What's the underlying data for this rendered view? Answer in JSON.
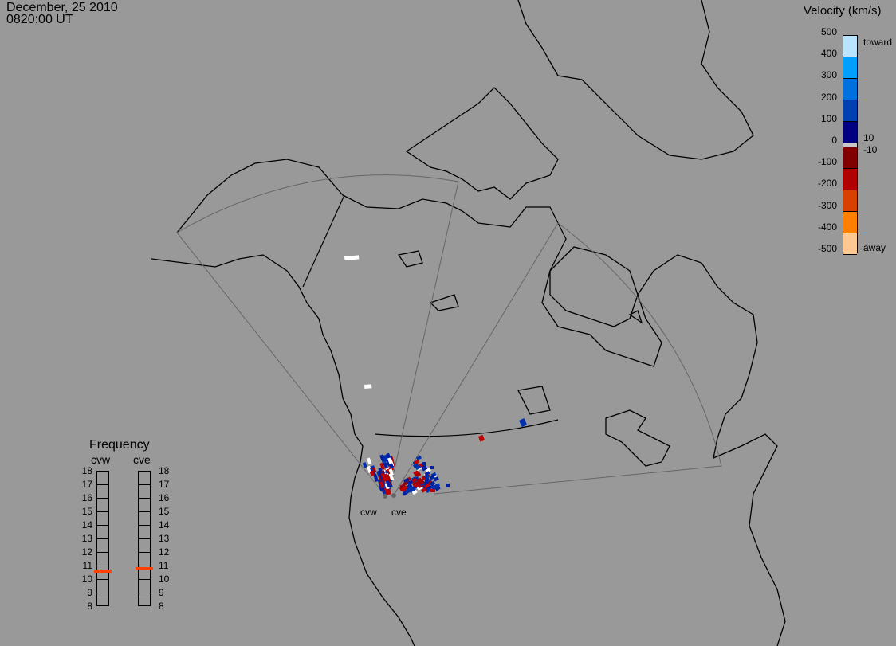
{
  "header": {
    "date": "December, 25 2010",
    "time": "0820:00 UT"
  },
  "colorbar": {
    "title": "Velocity (km/s)",
    "ticks": [
      "500",
      "400",
      "300",
      "200",
      "100",
      "0",
      "-100",
      "-200",
      "-300",
      "-400",
      "-500"
    ],
    "toward_label": "toward",
    "away_label": "away",
    "plus_label": "10",
    "minus_label": "-10",
    "colors": [
      "#b8e4ff",
      "#00a0ff",
      "#0070dd",
      "#0040b0",
      "#000080",
      "#800000",
      "#b00000",
      "#d84000",
      "#ff8000",
      "#ffc890"
    ],
    "ground_scatter_color": "#c8c8c8"
  },
  "frequency": {
    "title": "Frequency",
    "radars": [
      {
        "name": "cvw",
        "freq_mhz": 10.6
      },
      {
        "name": "cve",
        "freq_mhz": 10.8
      }
    ],
    "ticks": [
      "18",
      "17",
      "16",
      "15",
      "14",
      "13",
      "12",
      "11",
      "10",
      "9",
      "8"
    ],
    "marker_color": "#ff4000"
  },
  "map": {
    "radar_labels": [
      "cvw",
      "cve"
    ],
    "background": "#999999"
  }
}
